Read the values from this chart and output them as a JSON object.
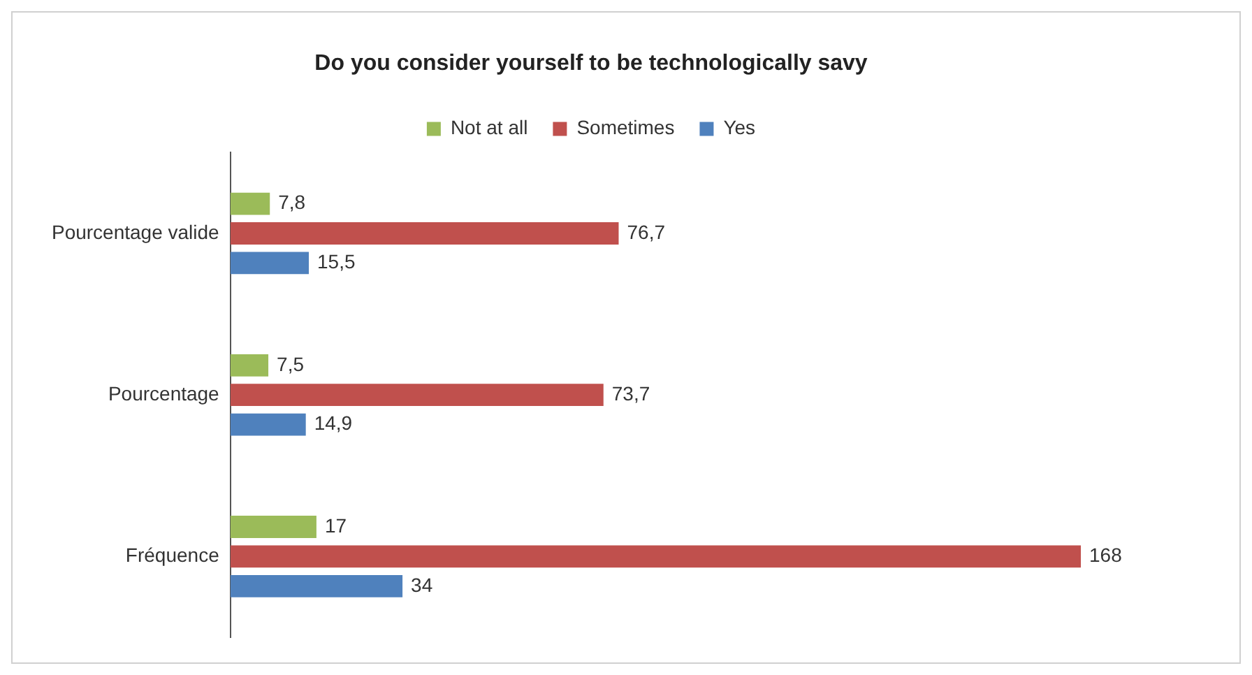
{
  "chart_data": {
    "type": "bar",
    "orientation": "horizontal",
    "title": "Do you consider yourself to be technologically savy",
    "categories": [
      "Pourcentage valide",
      "Pourcentage",
      "Fréquence"
    ],
    "series": [
      {
        "name": "Not at all",
        "color": "#9bbb59",
        "values": [
          7.8,
          7.5,
          17
        ],
        "value_labels": [
          "7,8",
          "7,5",
          "17"
        ]
      },
      {
        "name": "Sometimes",
        "color": "#c0504d",
        "values": [
          76.7,
          73.7,
          168
        ],
        "value_labels": [
          "76,7",
          "73,7",
          "168"
        ]
      },
      {
        "name": "Yes",
        "color": "#4f81bd",
        "values": [
          15.5,
          14.9,
          34
        ],
        "value_labels": [
          "15,5",
          "14,9",
          "34"
        ]
      }
    ],
    "legend": "top",
    "grid": false,
    "tick_labels": "y"
  }
}
